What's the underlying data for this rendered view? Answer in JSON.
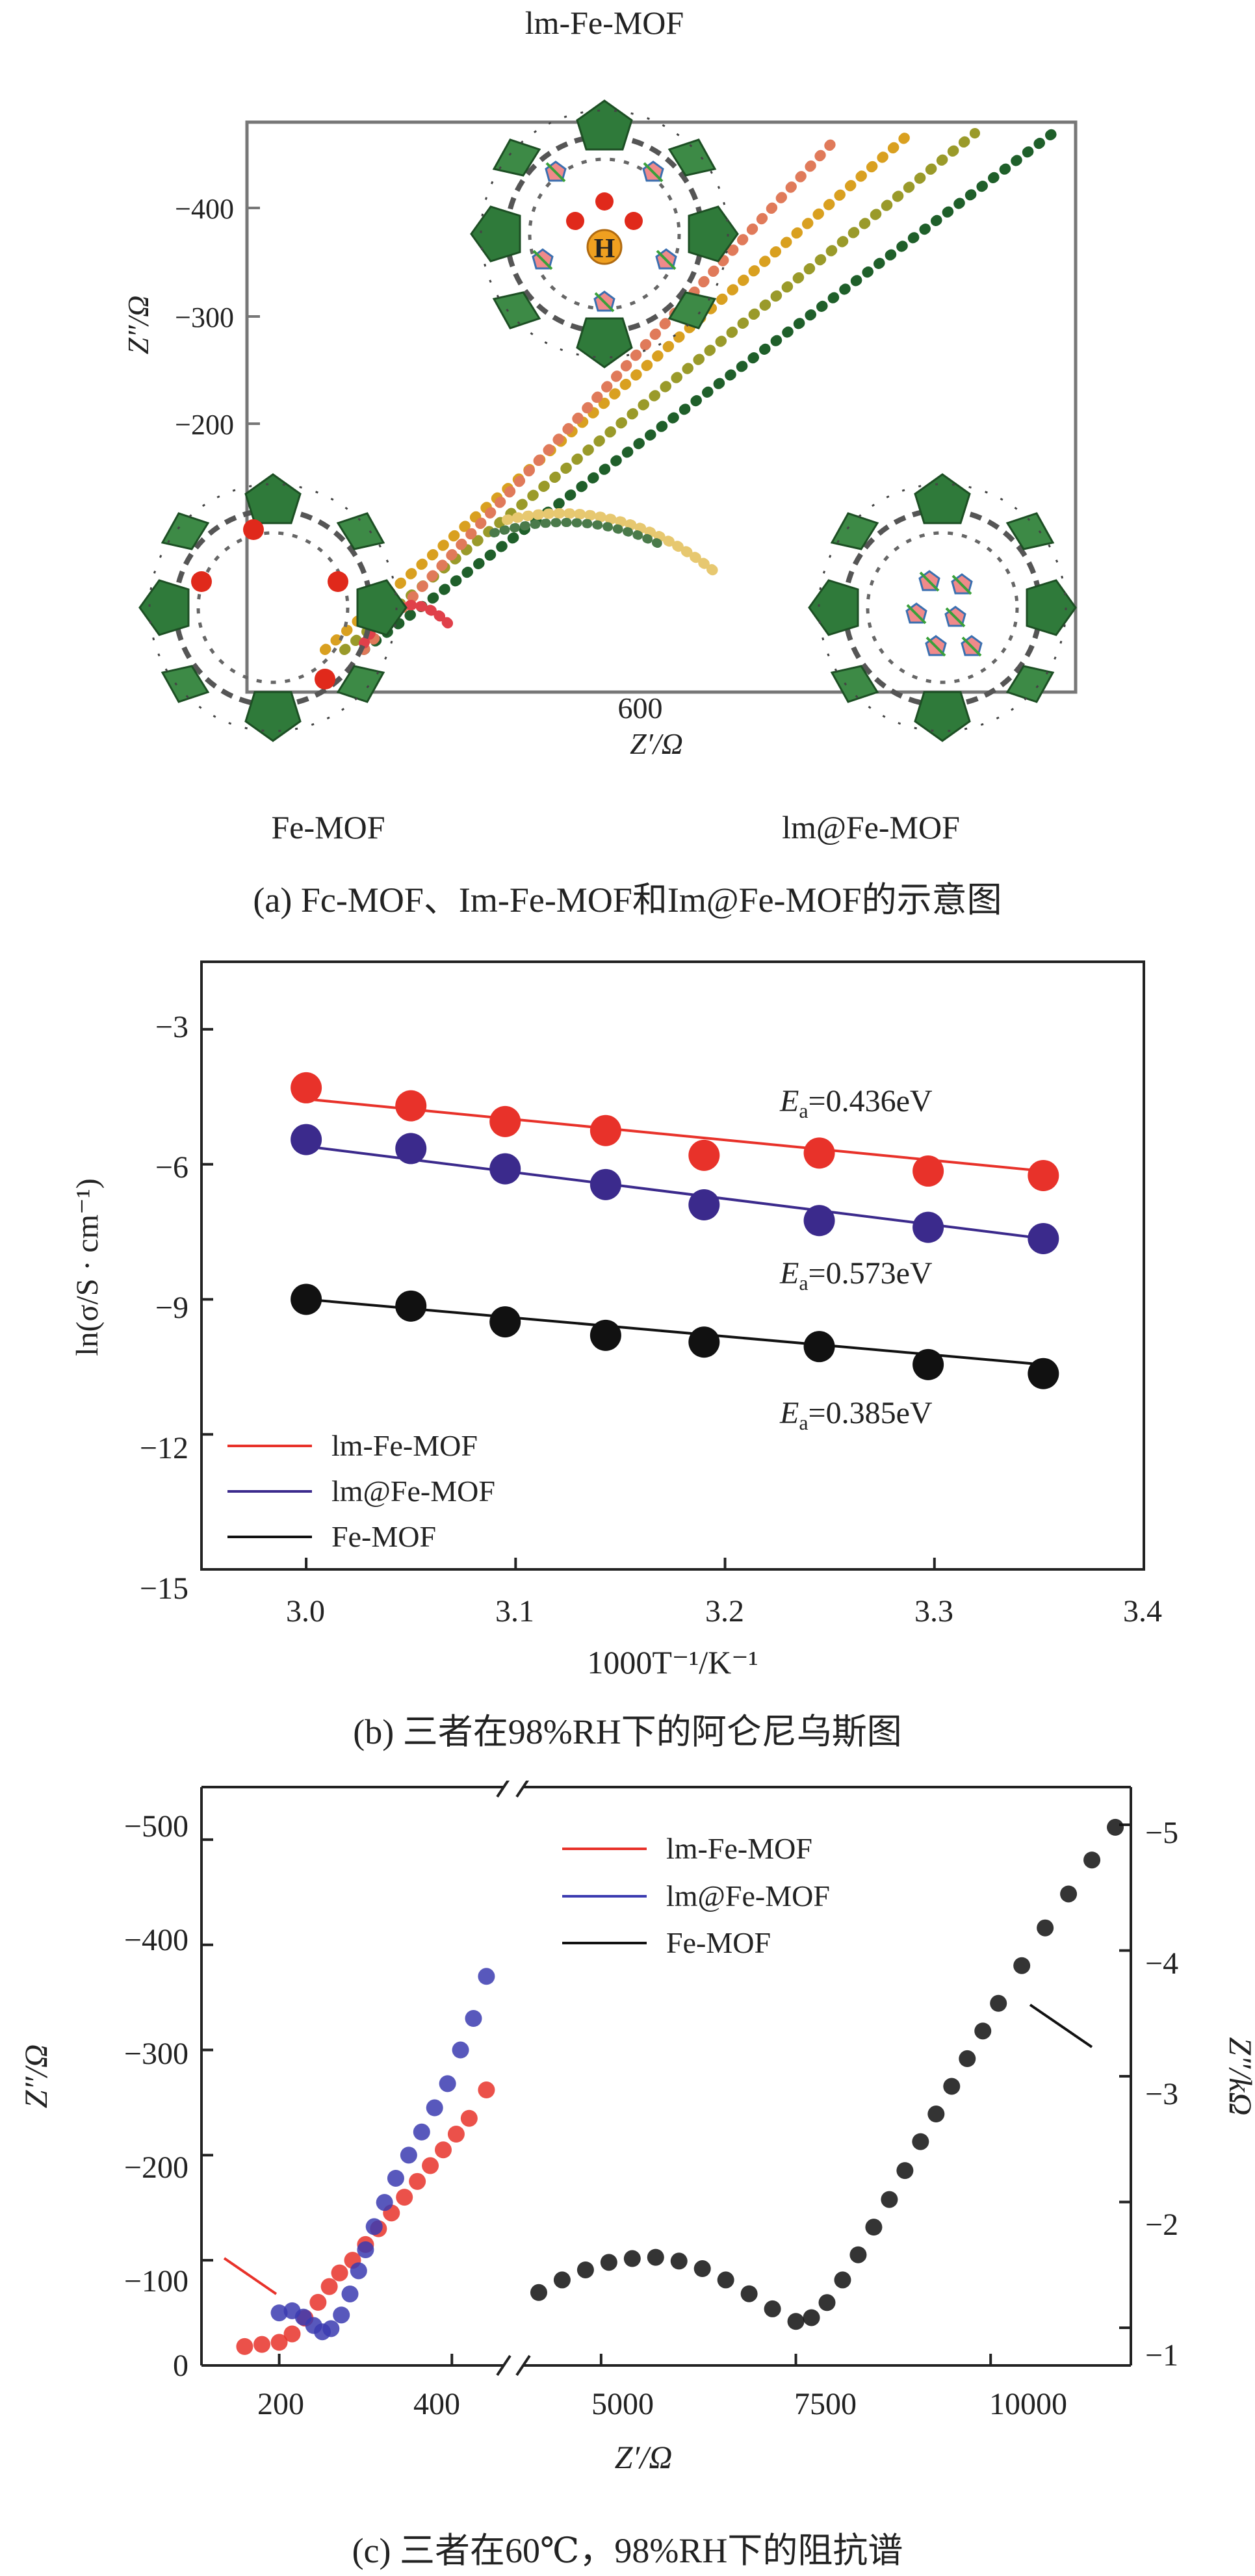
{
  "panel_a": {
    "caption": "(a) Fc-MOF、Im-Fe-MOF和Im@Fe-MOF的示意图",
    "label_top": "lm-Fe-MOF",
    "label_left": "Fe-MOF",
    "label_right": "lm@Fe-MOF",
    "proton_label": "H",
    "xlabel_value": "600",
    "xlabel": "Z′/Ω",
    "ylabel": "Z″/Ω",
    "yticks": [
      "−400",
      "−300",
      "−200"
    ],
    "colors": {
      "framework": "#2f7a3a",
      "linker": "#555555",
      "oxygen": "#e0291b",
      "guest": "#f08a8a"
    }
  },
  "panel_b": {
    "caption": "(b) 三者在98%RH下的阿仑尼乌斯图",
    "xlabel": "1000T⁻¹/K⁻¹",
    "ylabel": "ln(σ/S · cm⁻¹)",
    "xticks": [
      "3.0",
      "3.1",
      "3.2",
      "3.3",
      "3.4"
    ],
    "yticks": [
      "−3",
      "−6",
      "−9",
      "−12",
      "−15"
    ],
    "legend": [
      {
        "label": "lm-Fe-MOF",
        "color": "#e8322a"
      },
      {
        "label": "lm@Fe-MOF",
        "color": "#3b2a8c"
      },
      {
        "label": "Fe-MOF",
        "color": "#111111"
      }
    ],
    "annotations": [
      "0.436eV",
      "0.573eV",
      "0.385eV"
    ],
    "ea_symbol": "E",
    "ea_sub": "a",
    "ea_eq": "="
  },
  "panel_c": {
    "caption": "(c) 三者在60℃，98%RH下的阻抗谱",
    "xlabel": "Z′/Ω",
    "ylabel_left": "Z″/Ω",
    "ylabel_right": "Z″/kΩ",
    "xticks_left": [
      "200",
      "400"
    ],
    "xticks_right": [
      "5000",
      "7500",
      "10000"
    ],
    "yticks_left": [
      "−500",
      "−400",
      "−300",
      "−200",
      "−100",
      "0"
    ],
    "yticks_right": [
      "−5",
      "−4",
      "−3",
      "−2",
      "−1"
    ],
    "legend": [
      {
        "label": "lm-Fe-MOF",
        "color": "#e8322a"
      },
      {
        "label": "lm@Fe-MOF",
        "color": "#3b3bb0"
      },
      {
        "label": "Fe-MOF",
        "color": "#111111"
      }
    ]
  },
  "chart_data": [
    {
      "type": "scatter",
      "title": "",
      "xlabel": "1000T⁻¹/K⁻¹",
      "ylabel": "ln(σ/S · cm⁻¹)",
      "xlim": [
        2.95,
        3.4
      ],
      "ylim": [
        -15,
        -1.5
      ],
      "grid": false,
      "legend_position": "bottom-left",
      "series": [
        {
          "name": "lm-Fe-MOF",
          "x": [
            3.0,
            3.05,
            3.095,
            3.143,
            3.19,
            3.245,
            3.297,
            3.352
          ],
          "y": [
            -4.3,
            -4.7,
            -5.05,
            -5.25,
            -5.8,
            -5.75,
            -6.15,
            -6.25
          ],
          "fit": [
            -4.55,
            -6.15
          ]
        },
        {
          "name": "lm@Fe-MOF",
          "x": [
            3.0,
            3.05,
            3.095,
            3.143,
            3.19,
            3.245,
            3.297,
            3.352
          ],
          "y": [
            -5.45,
            -5.65,
            -6.1,
            -6.45,
            -6.9,
            -7.25,
            -7.4,
            -7.65
          ],
          "fit": [
            -5.6,
            -7.65
          ]
        },
        {
          "name": "Fe-MOF",
          "x": [
            3.0,
            3.05,
            3.095,
            3.143,
            3.19,
            3.245,
            3.297,
            3.352
          ],
          "y": [
            -9.0,
            -9.15,
            -9.5,
            -9.8,
            -9.95,
            -10.05,
            -10.45,
            -10.65
          ],
          "fit": [
            -9.0,
            -10.45
          ]
        }
      ]
    },
    {
      "type": "scatter",
      "title": "",
      "xlabel": "Z′/Ω",
      "ylabel_left": "Z″/Ω",
      "ylabel_right": "Z″/kΩ",
      "axis_break": true,
      "xlim_left": [
        110,
        460
      ],
      "xlim_right": [
        4000,
        11800
      ],
      "ylim_left": [
        0,
        -550
      ],
      "ylim_right": [
        -0.7,
        -5.3
      ],
      "grid": false,
      "legend_position": "top-center",
      "series": [
        {
          "name": "lm-Fe-MOF",
          "axis": "left",
          "x": [
            160,
            180,
            200,
            215,
            230,
            245,
            258,
            270,
            285,
            300,
            315,
            330,
            345,
            360,
            375,
            390,
            405,
            420,
            440
          ],
          "y": [
            -18,
            -20,
            -22,
            -30,
            -45,
            -60,
            -75,
            -88,
            -100,
            -115,
            -130,
            -145,
            -160,
            -175,
            -190,
            -205,
            -220,
            -235,
            -262
          ]
        },
        {
          "name": "lm@Fe-MOF",
          "axis": "left",
          "x": [
            200,
            215,
            228,
            240,
            250,
            260,
            272,
            282,
            292,
            300,
            310,
            322,
            335,
            350,
            365,
            380,
            395,
            410,
            425,
            440
          ],
          "y": [
            -50,
            -52,
            -46,
            -38,
            -32,
            -35,
            -48,
            -68,
            -90,
            -110,
            -132,
            -155,
            -178,
            -200,
            -222,
            -245,
            -268,
            -300,
            -330,
            -370
          ]
        },
        {
          "name": "Fe-MOF",
          "axis": "right",
          "x": [
            4200,
            4500,
            4800,
            5100,
            5400,
            5700,
            6000,
            6300,
            6600,
            6900,
            7200,
            7500,
            7700,
            7900,
            8100,
            8300,
            8500,
            8700,
            8900,
            9100,
            9300,
            9500,
            9700,
            9900,
            10100,
            10400,
            10700,
            11000,
            11300,
            11600
          ],
          "y": [
            -1.28,
            -1.38,
            -1.46,
            -1.52,
            -1.55,
            -1.56,
            -1.53,
            -1.47,
            -1.38,
            -1.27,
            -1.15,
            -1.05,
            -1.08,
            -1.2,
            -1.38,
            -1.58,
            -1.8,
            -2.02,
            -2.25,
            -2.48,
            -2.7,
            -2.92,
            -3.14,
            -3.36,
            -3.58,
            -3.88,
            -4.18,
            -4.45,
            -4.72,
            -4.98
          ]
        }
      ]
    }
  ]
}
